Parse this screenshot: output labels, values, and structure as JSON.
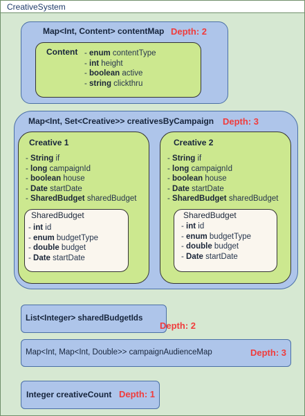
{
  "system_title": "CreativeSystem",
  "content_map": {
    "header": "Map<Int, Content> contentMap",
    "depth": "Depth: 2",
    "content": {
      "title": "Content",
      "fields": [
        {
          "prefix": "- ",
          "type": "enum",
          "name": " contentType"
        },
        {
          "prefix": "- ",
          "type": "int",
          "name": " height"
        },
        {
          "prefix": "- ",
          "type": "boolean",
          "name": " active"
        },
        {
          "prefix": "- ",
          "type": "string",
          "name": " clickthru"
        }
      ]
    }
  },
  "creatives_by_campaign": {
    "header": "Map<Int, Set<Creative>> creativesByCampaign",
    "depth": "Depth: 3",
    "creatives": [
      {
        "title": "Creative 1",
        "fields": [
          {
            "prefix": "- ",
            "type": "String",
            "name": " if"
          },
          {
            "prefix": "- ",
            "type": "long",
            "name": " campaignId"
          },
          {
            "prefix": "- ",
            "type": "boolean",
            "name": " house"
          },
          {
            "prefix": "- ",
            "type": "Date",
            "name": " startDate"
          },
          {
            "prefix": "- ",
            "type": "SharedBudget",
            "name": " sharedBudget"
          }
        ],
        "shared_budget": {
          "title": "SharedBudget",
          "fields": [
            {
              "prefix": "- ",
              "type": "int",
              "name": " id"
            },
            {
              "prefix": "- ",
              "type": "enum",
              "name": " budgetType"
            },
            {
              "prefix": "- ",
              "type": "double",
              "name": " budget"
            },
            {
              "prefix": "- ",
              "type": "Date",
              "name": " startDate"
            }
          ]
        }
      },
      {
        "title": "Creative 2",
        "fields": [
          {
            "prefix": "- ",
            "type": "String",
            "name": " if"
          },
          {
            "prefix": "- ",
            "type": "long",
            "name": " campaignId"
          },
          {
            "prefix": "- ",
            "type": "boolean",
            "name": " house"
          },
          {
            "prefix": "- ",
            "type": "Date",
            "name": " startDate"
          },
          {
            "prefix": "- ",
            "type": "SharedBudget",
            "name": " sharedBudget"
          }
        ],
        "shared_budget": {
          "title": "SharedBudget",
          "fields": [
            {
              "prefix": "- ",
              "type": "int",
              "name": " id"
            },
            {
              "prefix": "- ",
              "type": "enum",
              "name": " budgetType"
            },
            {
              "prefix": "- ",
              "type": "double",
              "name": " budget"
            },
            {
              "prefix": "- ",
              "type": "Date",
              "name": " startDate"
            }
          ]
        }
      }
    ]
  },
  "shared_budget_ids": {
    "label": "List<Integer> sharedBudgetIds",
    "depth": "Depth: 2"
  },
  "campaign_audience_map": {
    "label": "Map<Int, Map<Int, Double>> campaignAudienceMap",
    "depth": "Depth: 3"
  },
  "creative_count": {
    "label": "Integer creativeCount",
    "depth": "Depth: 1"
  },
  "colors": {
    "container_green": "#d6e8d2",
    "structure_blue": "#aec5ea",
    "class_green": "#cce88f",
    "nested_cream": "#faf6ee",
    "depth_red": "#f03c3c"
  }
}
